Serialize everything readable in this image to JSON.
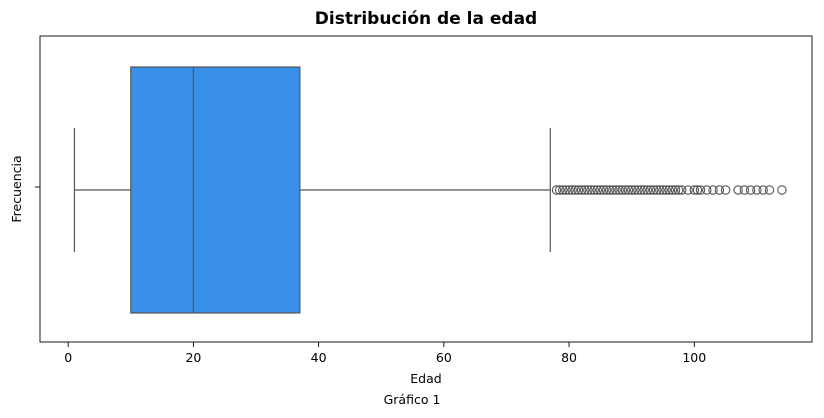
{
  "caption": "Gráfico 1",
  "chart_data": {
    "type": "boxplot",
    "title": "Distribución de la edad",
    "xlabel": "Edad",
    "ylabel": "Frecuencia",
    "xlim": [
      -4.5,
      118.8
    ],
    "xticks": [
      0,
      20,
      40,
      60,
      80,
      100
    ],
    "color": "#3A8FE8",
    "edge_color": "#555555",
    "grid": false,
    "box": {
      "min": 1,
      "q1": 10,
      "median": 20,
      "q3": 37,
      "max": 77
    },
    "outliers": [
      78,
      78.5,
      79,
      79.5,
      80,
      80.5,
      81,
      81.5,
      82,
      82.5,
      83,
      83.5,
      84,
      84.5,
      85,
      85.5,
      86,
      86.5,
      87,
      87.5,
      88,
      88.5,
      89,
      89.5,
      90,
      90.5,
      91,
      91.5,
      92,
      92.5,
      93,
      93.5,
      94,
      94.5,
      95,
      95.5,
      96,
      96.5,
      97,
      97.5,
      98,
      99,
      100,
      100.5,
      101,
      102,
      103,
      104,
      105,
      107,
      108,
      109,
      110,
      111,
      112,
      114
    ]
  }
}
